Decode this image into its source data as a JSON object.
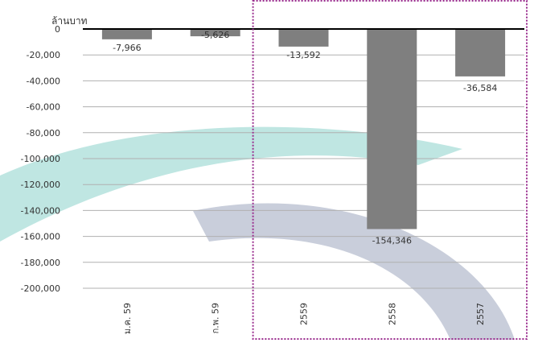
{
  "chart_data": {
    "type": "bar",
    "ylabel": "ล้านบาท",
    "categories": [
      "ม.ค. 59",
      "ก.พ. 59",
      "2559",
      "2558",
      "2557"
    ],
    "values": [
      -7966,
      -5626,
      -13592,
      -154346,
      -36584
    ],
    "data_labels": [
      "-7,966",
      "-5,626",
      "-13,592",
      "-154,346",
      "-36,584"
    ],
    "y_ticks": [
      0,
      -20000,
      -40000,
      -60000,
      -80000,
      -100000,
      -120000,
      -140000,
      -160000,
      -180000,
      -200000
    ],
    "y_tick_labels": [
      "0",
      "-20,000",
      "-40,000",
      "-60,000",
      "-80,000",
      "-100,000",
      "-120,000",
      "-140,000",
      "-160,000",
      "-180,000",
      "-200,000"
    ],
    "ylim": [
      -200000,
      0
    ],
    "grid": true,
    "highlight_group": [
      "2559",
      "2558",
      "2557"
    ],
    "colors": {
      "bar": "#7f7f7f",
      "grid": "#b0b0b0",
      "axis": "#000000",
      "highlight_border": "#9b2f8f",
      "watermark_teal": "#bfe6e2",
      "watermark_slate": "#c9cedb",
      "text": "#333333"
    }
  }
}
